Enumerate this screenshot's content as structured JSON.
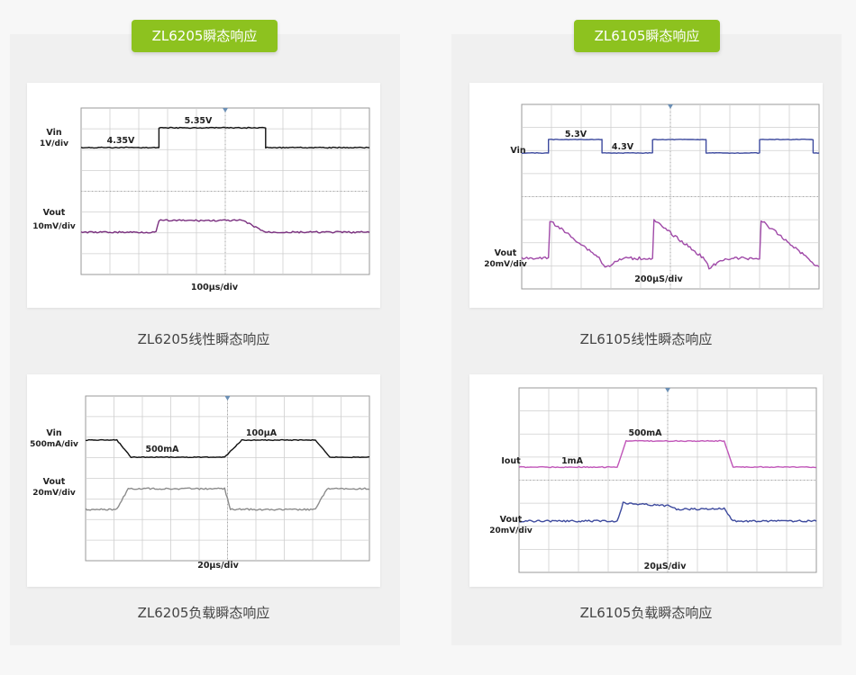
{
  "sections": [
    {
      "title": "ZL6205瞬态响应"
    },
    {
      "title": "ZL6105瞬态响应"
    }
  ],
  "captions": [
    "ZL6205线性瞬态响应",
    "ZL6105线性瞬态响应",
    "ZL6205负载瞬态响应",
    "ZL6105负载瞬态响应"
  ],
  "colors": {
    "accent": "#8dc21f",
    "trace_black": "#111111",
    "trace_purple": "#9a3fa0",
    "trace_gray": "#8c8c8c",
    "trace_blue": "#3d4a9e",
    "trace_magenta": "#c055b8"
  },
  "chart_data": [
    {
      "type": "line",
      "title": "",
      "channels": [
        {
          "label": "Vin",
          "sublabel": "1V/div",
          "color": "#111111",
          "x": [
            0,
            2.7,
            2.7,
            6.4,
            6.4,
            10
          ],
          "y": [
            0,
            0,
            1,
            1,
            0,
            0
          ]
        },
        {
          "label": "Vout",
          "sublabel": "10mV/div",
          "color": "#7a2f7f",
          "x": [
            0,
            2.6,
            2.7,
            5.6,
            6.4,
            10
          ],
          "y": [
            0,
            0,
            1,
            1,
            0,
            0
          ]
        }
      ],
      "annotations": [
        "5.35V",
        "4.35V"
      ],
      "xlabel": "100µs/div",
      "grid": true
    },
    {
      "type": "line",
      "title": "",
      "channels": [
        {
          "label": "Vin",
          "sublabel": "",
          "color": "#3d4a9e",
          "x": [
            0,
            0.9,
            0.9,
            2.7,
            2.7,
            4.4,
            4.4,
            6.2,
            6.2,
            8.0,
            8.0,
            9.8,
            9.8,
            10
          ],
          "y": [
            0,
            0,
            1,
            1,
            0,
            0,
            1,
            1,
            0,
            0,
            1,
            1,
            0,
            0
          ]
        },
        {
          "label": "Vout",
          "sublabel": "20mV/div",
          "color": "#a04aa8",
          "x": [
            0,
            0.9,
            0.95,
            2.6,
            2.8,
            3.4,
            4.4,
            4.45,
            6.1,
            6.3,
            6.9,
            8.0,
            8.05,
            9.6,
            10
          ],
          "y": [
            0,
            0,
            1.0,
            0.02,
            -0.25,
            0,
            0,
            1.0,
            0.02,
            -0.25,
            0,
            0,
            1.0,
            0.02,
            -0.25
          ]
        }
      ],
      "annotations": [
        "5.3V",
        "4.3V"
      ],
      "xlabel": "200µS/div",
      "grid": true
    },
    {
      "type": "line",
      "title": "",
      "channels": [
        {
          "label": "Vin",
          "sublabel": "500mA/div",
          "color": "#111111",
          "x": [
            0,
            1.1,
            1.6,
            4.9,
            5.5,
            8.1,
            8.6,
            10
          ],
          "y": [
            1,
            1,
            0,
            0,
            1,
            1,
            0,
            0
          ]
        },
        {
          "label": "Vout",
          "sublabel": "20mV/div",
          "color": "#8c8c8c",
          "x": [
            0,
            1.1,
            1.5,
            4.9,
            5.1,
            8.1,
            8.5,
            10
          ],
          "y": [
            0,
            0,
            1,
            1,
            0,
            0,
            1,
            1
          ]
        }
      ],
      "annotations": [
        "500mA",
        "100µA"
      ],
      "xlabel": "20µs/div",
      "grid": true
    },
    {
      "type": "line",
      "title": "",
      "channels": [
        {
          "label": "Iout",
          "sublabel": "",
          "color": "#c055b8",
          "x": [
            0,
            3.3,
            3.6,
            6.9,
            7.2,
            10
          ],
          "y": [
            0,
            0,
            1,
            1,
            0,
            0
          ]
        },
        {
          "label": "Vout",
          "sublabel": "20mV/div",
          "color": "#3d4a9e",
          "x": [
            0,
            3.3,
            3.5,
            5.0,
            5.3,
            6.9,
            7.2,
            10
          ],
          "y": [
            0,
            0,
            -1.0,
            -0.85,
            -0.65,
            -0.7,
            0,
            0
          ]
        }
      ],
      "annotations": [
        "500mA",
        "1mA"
      ],
      "xlabel": "20µS/div",
      "grid": true
    }
  ]
}
